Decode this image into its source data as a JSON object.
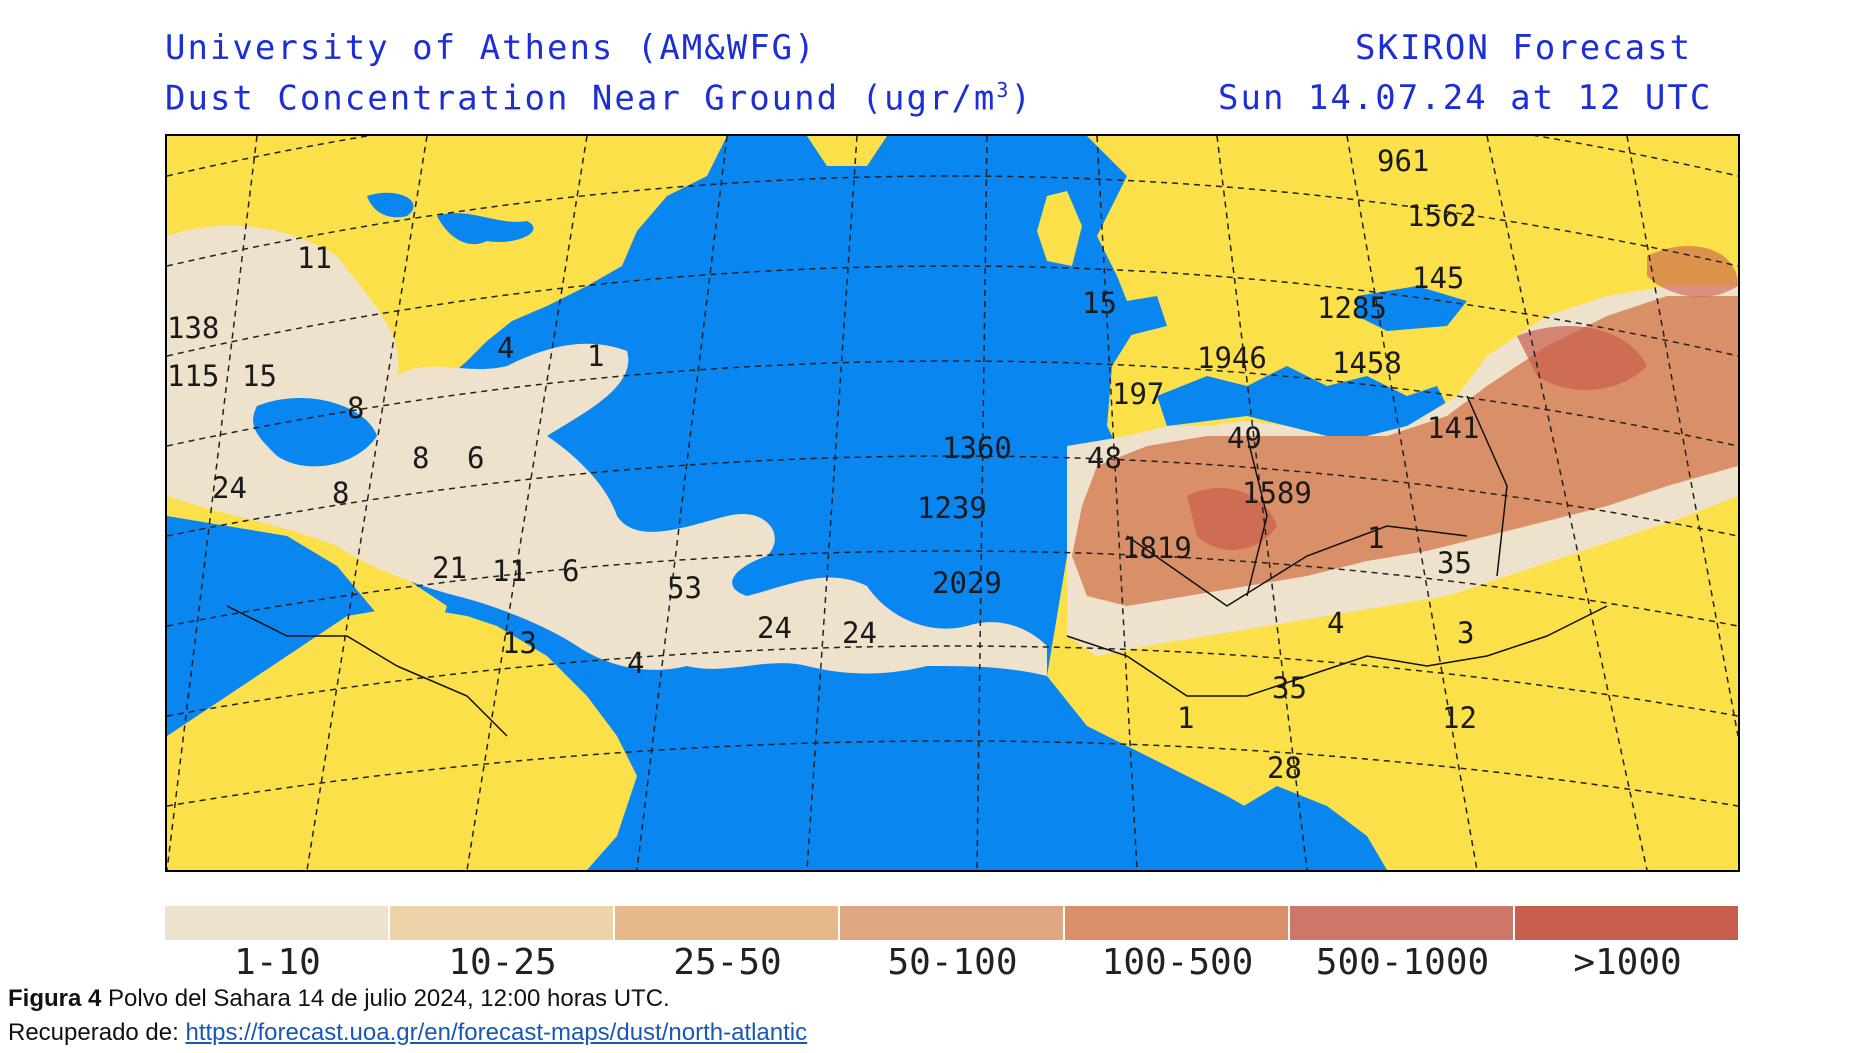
{
  "header": {
    "left_line1": "University of Athens (AM&WFG)",
    "left_line2": "Dust Concentration Near Ground (ugr/m",
    "left_line2_sup": "3",
    "left_line2_end": ")",
    "right_line1": "SKIRON Forecast",
    "right_line2": "Sun 14.07.24 at 12 UTC"
  },
  "colors": {
    "ocean": "#0a86f0",
    "land": "#fbe04a",
    "class_1_10": "#efe2cc",
    "class_10_25": "#ecd3a9",
    "class_25_50": "#e7b98a",
    "class_50_100": "#e0a581",
    "class_100_500": "#d98f68",
    "class_500_1000": "#cc7768",
    "class_gt_1000": "#c95d4c"
  },
  "legend": [
    {
      "label": "1-10",
      "color": "#efe2cc"
    },
    {
      "label": "10-25",
      "color": "#ecd3a9"
    },
    {
      "label": "25-50",
      "color": "#e7b98a"
    },
    {
      "label": "50-100",
      "color": "#e0a581"
    },
    {
      "label": "100-500",
      "color": "#d98f68"
    },
    {
      "label": "500-1000",
      "color": "#cc7768"
    },
    {
      "label": ">1000",
      "color": "#c95d4c"
    }
  ],
  "map_values": [
    "11",
    "138",
    "115",
    "15",
    "4",
    "1",
    "8",
    "8",
    "6",
    "24",
    "8",
    "21",
    "11",
    "6",
    "53",
    "24",
    "24",
    "13",
    "4",
    "961",
    "1562",
    "145",
    "15",
    "1285",
    "1946",
    "1458",
    "197",
    "1360",
    "48",
    "49",
    "141",
    "1589",
    "1239",
    "1819",
    "2029",
    "1",
    "35",
    "4",
    "3",
    "35",
    "1",
    "12",
    "28"
  ],
  "caption": {
    "figure_label": "Figura 4",
    "figure_text": " Polvo del Sahara 14 de julio 2024, 12:00 horas UTC.",
    "source_prefix": "Recuperado de: ",
    "source_link": "https://forecast.uoa.gr/en/forecast-maps/dust/north-atlantic"
  }
}
